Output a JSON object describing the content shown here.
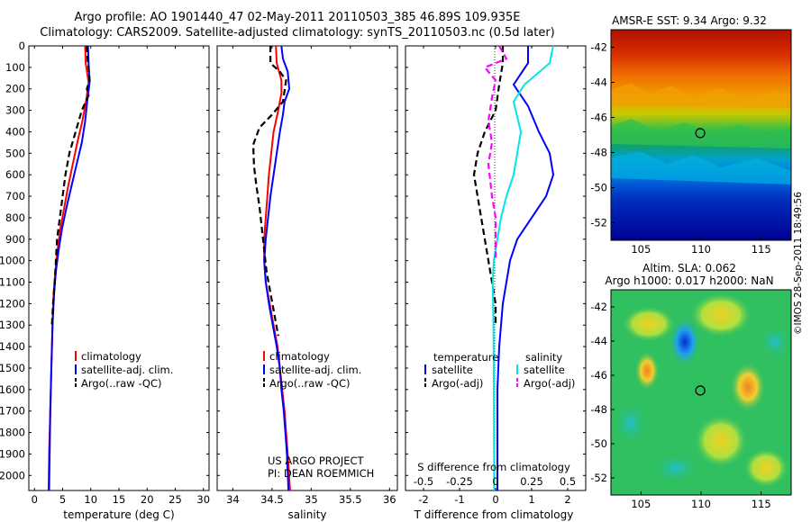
{
  "header": {
    "title_line1": "Argo profile: AO 1901440_47 02-May-2011 20110503_385 46.89S 109.935E",
    "title_line2": "Climatology: CARS2009. Satellite-adjusted climatology: synTS_20110503.nc (0.5d later)"
  },
  "right_side_label": "©IMOS 28-Sep-2011 18:49:56",
  "chart_data": [
    {
      "type": "line",
      "id": "temperature",
      "xlabel": "temperature (deg C)",
      "xlim": [
        -1,
        31
      ],
      "ylim": [
        0,
        2070
      ],
      "xticks": [
        0,
        5,
        10,
        15,
        20,
        25,
        30
      ],
      "yticks": [
        0,
        100,
        200,
        300,
        400,
        500,
        600,
        700,
        800,
        900,
        1000,
        1100,
        1200,
        1300,
        1400,
        1500,
        1600,
        1700,
        1800,
        1900,
        2000
      ],
      "legend": [
        "climatology",
        "satellite-adj. clim.",
        "Argo(..raw -QC)"
      ],
      "series": [
        {
          "name": "climatology",
          "color": "#ff0000",
          "dash": false,
          "points": [
            [
              9.0,
              0
            ],
            [
              9.1,
              80
            ],
            [
              9.6,
              170
            ],
            [
              9.2,
              250
            ],
            [
              8.5,
              350
            ],
            [
              7.6,
              450
            ],
            [
              6.8,
              550
            ],
            [
              6.0,
              650
            ],
            [
              5.3,
              750
            ],
            [
              4.6,
              850
            ],
            [
              4.1,
              950
            ],
            [
              3.7,
              1050
            ],
            [
              3.4,
              1150
            ],
            [
              3.2,
              1300
            ],
            [
              3.0,
              1500
            ],
            [
              2.8,
              1700
            ],
            [
              2.6,
              1900
            ],
            [
              2.5,
              2070
            ]
          ]
        },
        {
          "name": "satellite-adj. clim.",
          "color": "#0000ff",
          "dash": false,
          "points": [
            [
              9.5,
              0
            ],
            [
              9.6,
              80
            ],
            [
              9.8,
              170
            ],
            [
              9.4,
              250
            ],
            [
              9.0,
              350
            ],
            [
              8.4,
              450
            ],
            [
              7.5,
              550
            ],
            [
              6.6,
              650
            ],
            [
              5.7,
              750
            ],
            [
              4.9,
              850
            ],
            [
              4.3,
              950
            ],
            [
              3.8,
              1050
            ],
            [
              3.5,
              1150
            ],
            [
              3.2,
              1300
            ],
            [
              3.0,
              1500
            ],
            [
              2.8,
              1700
            ],
            [
              2.7,
              1900
            ],
            [
              2.6,
              2070
            ]
          ]
        },
        {
          "name": "Argo(..raw -QC)",
          "color": "#000000",
          "dash": true,
          "points": [
            [
              9.3,
              0
            ],
            [
              9.4,
              50
            ],
            [
              9.8,
              160
            ],
            [
              9.3,
              200
            ],
            [
              9.6,
              230
            ],
            [
              8.4,
              300
            ],
            [
              7.3,
              400
            ],
            [
              6.2,
              500
            ],
            [
              5.5,
              600
            ],
            [
              5.0,
              700
            ],
            [
              4.5,
              800
            ],
            [
              4.0,
              900
            ],
            [
              3.8,
              1000
            ],
            [
              3.6,
              1100
            ],
            [
              3.3,
              1200
            ],
            [
              3.1,
              1300
            ]
          ]
        }
      ]
    },
    {
      "type": "line",
      "id": "salinity",
      "xlabel": "salinity",
      "xlim": [
        33.8,
        36.1
      ],
      "ylim": [
        0,
        2070
      ],
      "xticks": [
        34,
        34.5,
        35,
        35.5,
        36
      ],
      "xtick_labels": [
        "34",
        "34.5",
        "35",
        "35.5",
        "36"
      ],
      "legend": [
        "climatology",
        "satellite-adj. clim.",
        "Argo(..raw -QC)"
      ],
      "annotations": [
        "US ARGO PROJECT",
        "PI: DEAN ROEMMICH"
      ],
      "series": [
        {
          "name": "climatology",
          "color": "#ff0000",
          "dash": false,
          "points": [
            [
              34.55,
              0
            ],
            [
              34.56,
              80
            ],
            [
              34.62,
              160
            ],
            [
              34.62,
              220
            ],
            [
              34.58,
              300
            ],
            [
              34.52,
              400
            ],
            [
              34.49,
              500
            ],
            [
              34.46,
              600
            ],
            [
              34.44,
              700
            ],
            [
              34.42,
              800
            ],
            [
              34.4,
              900
            ],
            [
              34.4,
              1000
            ],
            [
              34.42,
              1100
            ],
            [
              34.47,
              1200
            ],
            [
              34.52,
              1300
            ],
            [
              34.57,
              1400
            ],
            [
              34.6,
              1500
            ],
            [
              34.63,
              1600
            ],
            [
              34.66,
              1700
            ],
            [
              34.68,
              1800
            ],
            [
              34.7,
              1900
            ],
            [
              34.73,
              2070
            ]
          ]
        },
        {
          "name": "satellite-adj. clim.",
          "color": "#0000ff",
          "dash": false,
          "points": [
            [
              34.62,
              0
            ],
            [
              34.64,
              60
            ],
            [
              34.7,
              120
            ],
            [
              34.72,
              200
            ],
            [
              34.66,
              260
            ],
            [
              34.64,
              320
            ],
            [
              34.6,
              400
            ],
            [
              34.56,
              500
            ],
            [
              34.52,
              600
            ],
            [
              34.48,
              700
            ],
            [
              34.45,
              800
            ],
            [
              34.42,
              900
            ],
            [
              34.4,
              1000
            ],
            [
              34.42,
              1100
            ],
            [
              34.46,
              1200
            ],
            [
              34.51,
              1300
            ],
            [
              34.56,
              1400
            ],
            [
              34.6,
              1500
            ],
            [
              34.62,
              1600
            ],
            [
              34.65,
              1700
            ],
            [
              34.67,
              1800
            ],
            [
              34.69,
              1900
            ],
            [
              34.71,
              2070
            ]
          ]
        },
        {
          "name": "Argo(..raw -QC)",
          "color": "#000000",
          "dash": true,
          "points": [
            [
              34.48,
              0
            ],
            [
              34.48,
              80
            ],
            [
              34.6,
              120
            ],
            [
              34.68,
              160
            ],
            [
              34.64,
              260
            ],
            [
              34.5,
              320
            ],
            [
              34.34,
              380
            ],
            [
              34.26,
              460
            ],
            [
              34.27,
              560
            ],
            [
              34.3,
              650
            ],
            [
              34.34,
              750
            ],
            [
              34.37,
              850
            ],
            [
              34.4,
              950
            ],
            [
              34.43,
              1050
            ],
            [
              34.48,
              1150
            ],
            [
              34.53,
              1250
            ],
            [
              34.58,
              1350
            ]
          ]
        }
      ]
    },
    {
      "type": "line",
      "id": "difference",
      "xlabel": "T difference from climatology",
      "xlim": [
        -2.5,
        2.5
      ],
      "ylim": [
        0,
        2070
      ],
      "xticks": [
        -2,
        -1,
        0,
        1,
        2
      ],
      "secondary_axis_label": "S difference from climatology",
      "secondary_ticks": [
        "-0.5",
        "-0.25",
        "0",
        "0.25",
        "0.5"
      ],
      "legend_headers": [
        "temperature",
        "salinity"
      ],
      "legend": [
        "satellite",
        "Argo(-adj)",
        "satellite",
        "Argo(-adj)"
      ],
      "series": [
        {
          "name": "satellite",
          "group": "temperature",
          "color": "#0000ff",
          "dash": false,
          "points": [
            [
              0.9,
              0
            ],
            [
              0.9,
              80
            ],
            [
              0.5,
              180
            ],
            [
              0.9,
              280
            ],
            [
              1.2,
              400
            ],
            [
              1.5,
              500
            ],
            [
              1.6,
              600
            ],
            [
              1.4,
              700
            ],
            [
              1.0,
              800
            ],
            [
              0.6,
              900
            ],
            [
              0.4,
              1000
            ],
            [
              0.3,
              1100
            ],
            [
              0.2,
              1200
            ],
            [
              0.1,
              1400
            ],
            [
              0.05,
              1600
            ],
            [
              0.05,
              2070
            ]
          ]
        },
        {
          "name": "Argo(-adj)",
          "group": "temperature",
          "color": "#000000",
          "dash": true,
          "points": [
            [
              0.2,
              0
            ],
            [
              0.2,
              80
            ],
            [
              0.1,
              180
            ],
            [
              0.0,
              300
            ],
            [
              -0.3,
              400
            ],
            [
              -0.5,
              500
            ],
            [
              -0.6,
              600
            ],
            [
              -0.5,
              700
            ],
            [
              -0.4,
              800
            ],
            [
              -0.3,
              900
            ],
            [
              -0.2,
              1000
            ],
            [
              -0.1,
              1100
            ],
            [
              0.0,
              1200
            ],
            [
              0.0,
              1300
            ]
          ]
        },
        {
          "name": "satellite",
          "group": "salinity",
          "color": "#00e5e5",
          "dash": false,
          "points": [
            [
              1.6,
              0
            ],
            [
              1.5,
              80
            ],
            [
              0.8,
              180
            ],
            [
              0.5,
              260
            ],
            [
              0.7,
              400
            ],
            [
              0.6,
              500
            ],
            [
              0.5,
              600
            ],
            [
              0.3,
              700
            ],
            [
              0.15,
              800
            ],
            [
              0.05,
              900
            ],
            [
              -0.05,
              1000
            ],
            [
              -0.08,
              1100
            ],
            [
              -0.06,
              1300
            ],
            [
              -0.05,
              1500
            ],
            [
              -0.04,
              2070
            ]
          ]
        },
        {
          "name": "Argo(-adj)",
          "group": "salinity",
          "color": "#ff00ff",
          "dash": true,
          "points": [
            [
              0.1,
              0
            ],
            [
              0.3,
              60
            ],
            [
              -0.3,
              100
            ],
            [
              0.0,
              160
            ],
            [
              -0.1,
              240
            ],
            [
              -0.2,
              350
            ],
            [
              -0.1,
              450
            ],
            [
              -0.2,
              550
            ],
            [
              -0.1,
              700
            ],
            [
              0.0,
              800
            ],
            [
              0.0,
              900
            ],
            [
              0.0,
              1000
            ]
          ]
        }
      ]
    },
    {
      "type": "heatmap",
      "id": "sst_map",
      "title": "AMSR-E SST: 9.34 Argo: 9.32",
      "xticks": [
        105,
        110,
        115
      ],
      "yticks": [
        -42,
        -44,
        -46,
        -48,
        -50,
        -52
      ],
      "xlim": [
        102.5,
        117.5
      ],
      "ylim": [
        -53,
        -41
      ],
      "marker": [
        109.935,
        -46.89
      ]
    },
    {
      "type": "heatmap",
      "id": "sla_map",
      "title_line1": "Altim. SLA: 0.062",
      "title_line2": "Argo h1000: 0.017 h2000: NaN",
      "xticks": [
        105,
        110,
        115
      ],
      "yticks": [
        -42,
        -44,
        -46,
        -48,
        -50,
        -52
      ],
      "xlim": [
        102.5,
        117.5
      ],
      "ylim": [
        -53,
        -41
      ],
      "marker": [
        109.935,
        -46.89
      ]
    }
  ]
}
